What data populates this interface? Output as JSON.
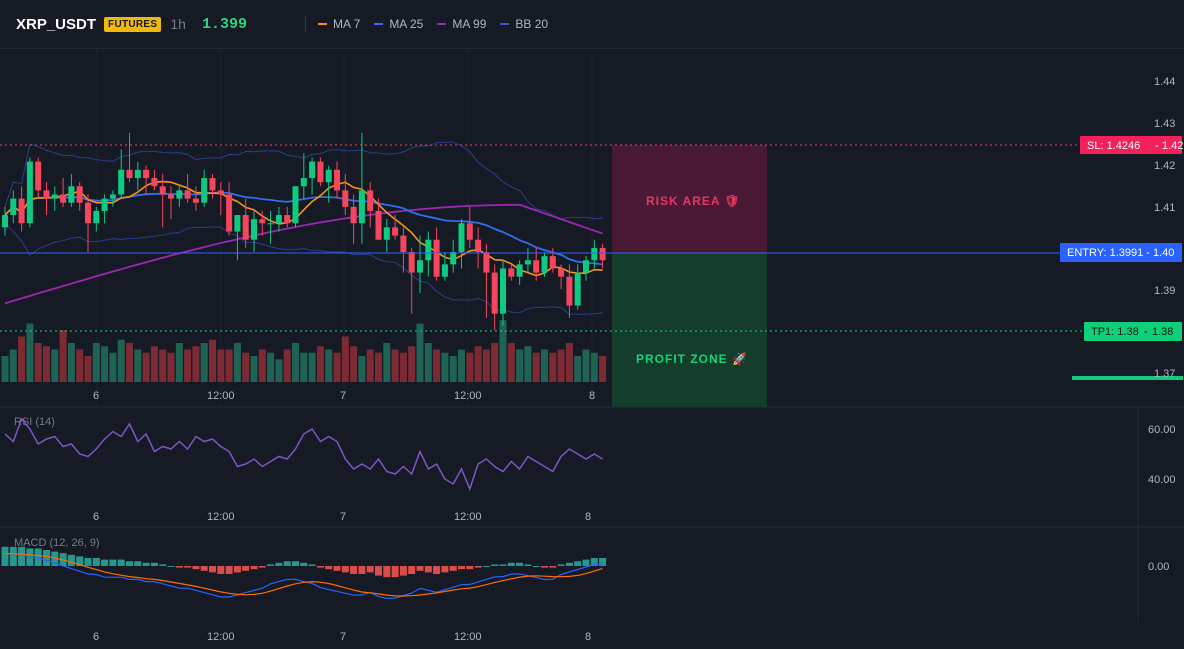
{
  "header": {
    "symbol": "XRP_USDT",
    "badge": "FUTURES",
    "timeframe": "1h",
    "price": "1.399",
    "indicators": [
      {
        "label": "MA 7",
        "color": "#f7931a"
      },
      {
        "label": "MA 25",
        "color": "#2f6ff0"
      },
      {
        "label": "MA 99",
        "color": "#9c27b0"
      },
      {
        "label": "BB 20",
        "color": "#3b5dc9"
      }
    ]
  },
  "price_axis": {
    "ticks": [
      "1.44",
      "1.43",
      "1.42",
      "1.41",
      "1.40",
      "1.39",
      "1.38",
      "1.37"
    ]
  },
  "time_axis": {
    "ticks": [
      "6",
      "12:00",
      "7",
      "12:00",
      "8"
    ]
  },
  "levels": {
    "sl": {
      "label": "SL: 1.4246",
      "value": "1.42"
    },
    "entry": {
      "label": "ENTRY: 1.3991",
      "value": "1.40"
    },
    "tp1": {
      "label": "TP1: 1.38",
      "value": "1.38"
    }
  },
  "zones": {
    "risk": "RISK AREA 🛡",
    "profit": "PROFIT ZONE 🚀"
  },
  "rsi": {
    "title": "RSI (14)",
    "ticks": [
      "60.00",
      "40.00"
    ]
  },
  "macd": {
    "title": "MACD (12, 26, 9)",
    "ticks": [
      "0.00"
    ]
  },
  "colors": {
    "bull": "#0ecb81",
    "bear": "#f6465d",
    "background": "#161a25"
  },
  "chart_data": {
    "type": "candlestick",
    "symbol": "XRP_USDT",
    "interval": "1h",
    "ylim": [
      1.367,
      1.446
    ],
    "stop_loss": 1.4246,
    "entry": 1.3991,
    "take_profit": 1.38,
    "candles_ohlc": [
      [
        1.409,
        1.414,
        1.407,
        1.412
      ],
      [
        1.412,
        1.418,
        1.41,
        1.416
      ],
      [
        1.416,
        1.419,
        1.408,
        1.41
      ],
      [
        1.41,
        1.426,
        1.409,
        1.425
      ],
      [
        1.425,
        1.426,
        1.416,
        1.418
      ],
      [
        1.418,
        1.42,
        1.412,
        1.416
      ],
      [
        1.416,
        1.419,
        1.413,
        1.417
      ],
      [
        1.417,
        1.421,
        1.414,
        1.415
      ],
      [
        1.415,
        1.422,
        1.414,
        1.419
      ],
      [
        1.419,
        1.42,
        1.413,
        1.415
      ],
      [
        1.415,
        1.417,
        1.403,
        1.41
      ],
      [
        1.41,
        1.414,
        1.408,
        1.413
      ],
      [
        1.413,
        1.417,
        1.41,
        1.416
      ],
      [
        1.416,
        1.418,
        1.414,
        1.417
      ],
      [
        1.417,
        1.428,
        1.416,
        1.423
      ],
      [
        1.423,
        1.432,
        1.42,
        1.421
      ],
      [
        1.421,
        1.425,
        1.418,
        1.423
      ],
      [
        1.423,
        1.424,
        1.417,
        1.421
      ],
      [
        1.421,
        1.423,
        1.418,
        1.419
      ],
      [
        1.419,
        1.422,
        1.409,
        1.417
      ],
      [
        1.417,
        1.419,
        1.411,
        1.416
      ],
      [
        1.416,
        1.419,
        1.414,
        1.418
      ],
      [
        1.418,
        1.422,
        1.415,
        1.416
      ],
      [
        1.416,
        1.419,
        1.413,
        1.415
      ],
      [
        1.415,
        1.423,
        1.414,
        1.421
      ],
      [
        1.421,
        1.422,
        1.416,
        1.418
      ],
      [
        1.418,
        1.42,
        1.412,
        1.417
      ],
      [
        1.417,
        1.42,
        1.407,
        1.408
      ],
      [
        1.408,
        1.412,
        1.401,
        1.412
      ],
      [
        1.412,
        1.416,
        1.404,
        1.406
      ],
      [
        1.406,
        1.413,
        1.403,
        1.411
      ],
      [
        1.411,
        1.413,
        1.407,
        1.41
      ],
      [
        1.41,
        1.413,
        1.405,
        1.41
      ],
      [
        1.41,
        1.414,
        1.408,
        1.412
      ],
      [
        1.412,
        1.414,
        1.409,
        1.41
      ],
      [
        1.41,
        1.417,
        1.409,
        1.419
      ],
      [
        1.419,
        1.427,
        1.416,
        1.421
      ],
      [
        1.421,
        1.426,
        1.417,
        1.425
      ],
      [
        1.425,
        1.426,
        1.419,
        1.42
      ],
      [
        1.42,
        1.424,
        1.415,
        1.423
      ],
      [
        1.423,
        1.425,
        1.416,
        1.418
      ],
      [
        1.418,
        1.422,
        1.412,
        1.414
      ],
      [
        1.414,
        1.417,
        1.405,
        1.41
      ],
      [
        1.41,
        1.432,
        1.405,
        1.418
      ],
      [
        1.418,
        1.42,
        1.409,
        1.413
      ],
      [
        1.413,
        1.416,
        1.406,
        1.406
      ],
      [
        1.406,
        1.411,
        1.403,
        1.409
      ],
      [
        1.409,
        1.412,
        1.406,
        1.407
      ],
      [
        1.407,
        1.409,
        1.398,
        1.403
      ],
      [
        1.403,
        1.404,
        1.388,
        1.398
      ],
      [
        1.398,
        1.407,
        1.393,
        1.401
      ],
      [
        1.401,
        1.408,
        1.397,
        1.406
      ],
      [
        1.406,
        1.409,
        1.396,
        1.397
      ],
      [
        1.397,
        1.403,
        1.396,
        1.4
      ],
      [
        1.4,
        1.406,
        1.398,
        1.403
      ],
      [
        1.403,
        1.411,
        1.399,
        1.41
      ],
      [
        1.41,
        1.414,
        1.404,
        1.406
      ],
      [
        1.406,
        1.409,
        1.399,
        1.403
      ],
      [
        1.403,
        1.405,
        1.387,
        1.398
      ],
      [
        1.398,
        1.4,
        1.384,
        1.388
      ],
      [
        1.388,
        1.401,
        1.385,
        1.399
      ],
      [
        1.399,
        1.4,
        1.396,
        1.397
      ],
      [
        1.397,
        1.401,
        1.395,
        1.4
      ],
      [
        1.4,
        1.404,
        1.398,
        1.401
      ],
      [
        1.401,
        1.404,
        1.396,
        1.398
      ],
      [
        1.398,
        1.403,
        1.397,
        1.402
      ],
      [
        1.402,
        1.404,
        1.398,
        1.399
      ],
      [
        1.399,
        1.4,
        1.394,
        1.397
      ],
      [
        1.397,
        1.4,
        1.387,
        1.39
      ],
      [
        1.39,
        1.4,
        1.389,
        1.398
      ],
      [
        1.398,
        1.402,
        1.396,
        1.401
      ],
      [
        1.401,
        1.406,
        1.399,
        1.404
      ],
      [
        1.404,
        1.405,
        1.399,
        1.401
      ]
    ],
    "volume": [
      0.4,
      0.5,
      0.7,
      0.9,
      0.6,
      0.55,
      0.5,
      0.8,
      0.6,
      0.5,
      0.4,
      0.6,
      0.55,
      0.45,
      0.65,
      0.6,
      0.5,
      0.45,
      0.55,
      0.5,
      0.45,
      0.6,
      0.5,
      0.55,
      0.6,
      0.65,
      0.5,
      0.5,
      0.6,
      0.45,
      0.4,
      0.5,
      0.45,
      0.35,
      0.5,
      0.6,
      0.45,
      0.45,
      0.55,
      0.5,
      0.45,
      0.7,
      0.55,
      0.4,
      0.5,
      0.45,
      0.6,
      0.5,
      0.45,
      0.55,
      0.9,
      0.6,
      0.5,
      0.45,
      0.4,
      0.5,
      0.45,
      0.55,
      0.5,
      0.6,
      0.95,
      0.6,
      0.5,
      0.55,
      0.45,
      0.5,
      0.45,
      0.5,
      0.6,
      0.4,
      0.5,
      0.45,
      0.4
    ],
    "rsi": [
      58,
      55,
      64,
      60,
      54,
      56,
      57,
      53,
      54,
      50,
      49,
      52,
      56,
      59,
      57,
      62,
      55,
      58,
      51,
      53,
      52,
      55,
      52,
      57,
      55,
      56,
      53,
      51,
      45,
      46,
      48,
      45,
      47,
      49,
      48,
      52,
      58,
      60,
      55,
      57,
      55,
      48,
      44,
      46,
      44,
      48,
      43,
      42,
      45,
      42,
      51,
      44,
      46,
      40,
      38,
      44,
      36,
      46,
      48,
      45,
      43,
      47,
      44,
      49,
      47,
      45,
      43,
      49,
      52,
      50,
      48,
      50,
      48
    ],
    "macd_hist": [
      12,
      12,
      12,
      11,
      11,
      10,
      9,
      8,
      7,
      6,
      5,
      5,
      4,
      4,
      4,
      3,
      3,
      2,
      2,
      1,
      0,
      -1,
      -1,
      -2,
      -3,
      -4,
      -5,
      -5,
      -4,
      -3,
      -2,
      -1,
      1,
      2,
      3,
      3,
      2,
      1,
      -1,
      -2,
      -3,
      -4,
      -5,
      -5,
      -4,
      -6,
      -7,
      -7,
      -6,
      -5,
      -3,
      -4,
      -5,
      -4,
      -3,
      -2,
      -2,
      -1,
      0,
      1,
      1,
      2,
      2,
      1,
      0,
      -1,
      -1,
      1,
      2,
      3,
      4,
      5,
      5
    ]
  }
}
